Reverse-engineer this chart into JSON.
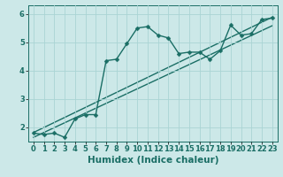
{
  "xlabel": "Humidex (Indice chaleur)",
  "ylabel": "",
  "bg_color": "#cce8e8",
  "line_color": "#1a6e65",
  "grid_color": "#aad4d4",
  "xlim": [
    -0.5,
    23.5
  ],
  "ylim": [
    1.5,
    6.3
  ],
  "xticks": [
    0,
    1,
    2,
    3,
    4,
    5,
    6,
    7,
    8,
    9,
    10,
    11,
    12,
    13,
    14,
    15,
    16,
    17,
    18,
    19,
    20,
    21,
    22,
    23
  ],
  "yticks": [
    2,
    3,
    4,
    5,
    6
  ],
  "curve_x": [
    0,
    1,
    2,
    3,
    4,
    5,
    6,
    7,
    8,
    9,
    10,
    11,
    12,
    13,
    14,
    15,
    16,
    17,
    18,
    19,
    20,
    21,
    22,
    23
  ],
  "curve_y": [
    1.8,
    1.75,
    1.8,
    1.65,
    2.3,
    2.45,
    2.45,
    4.35,
    4.4,
    4.95,
    5.5,
    5.55,
    5.25,
    5.15,
    4.6,
    4.65,
    4.65,
    4.4,
    4.7,
    5.6,
    5.25,
    5.3,
    5.8,
    5.85
  ],
  "line1_x": [
    0,
    23
  ],
  "line1_y": [
    1.82,
    5.88
  ],
  "line2_x": [
    0,
    23
  ],
  "line2_y": [
    1.65,
    5.58
  ],
  "title_fontsize": 7,
  "xlabel_fontsize": 7.5,
  "tick_fontsize": 6,
  "marker_size": 2.5,
  "line_width": 1.0
}
